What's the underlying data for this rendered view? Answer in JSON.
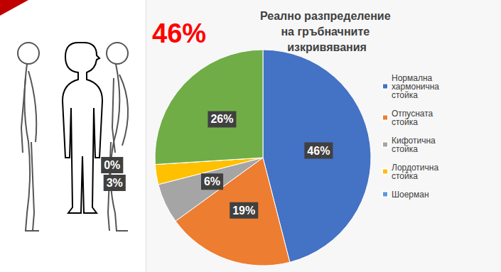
{
  "chart_data": {
    "type": "pie",
    "title": "Реално разпределение на гръбначните изкривявания",
    "annotation": "46%",
    "categories": [
      "Нормална хармонична стойка",
      "Отпусната стойка",
      "Кифотична стойка",
      "Лордотична стойка",
      "Шоерман",
      null
    ],
    "values": [
      46,
      19,
      6,
      3,
      0,
      26
    ],
    "value_labels": [
      "46%",
      "19%",
      "6%",
      "3%",
      "0%",
      "26%"
    ],
    "colors": [
      "#4472c4",
      "#ed7d31",
      "#a5a5a5",
      "#ffc000",
      "#5b9bd5",
      "#70ad47"
    ],
    "data_labels": true,
    "legend": "right"
  }
}
